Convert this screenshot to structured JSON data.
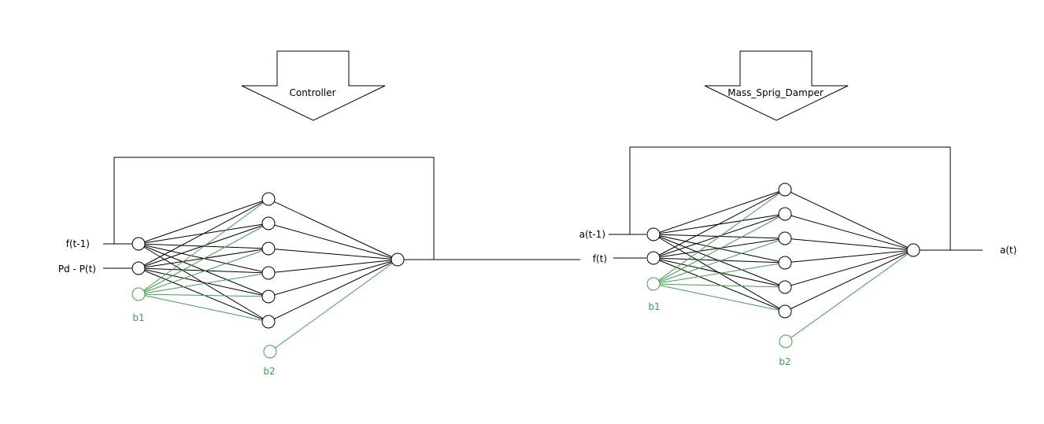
{
  "colors": {
    "line": "#000000",
    "bias": "#3f9f4f",
    "background": "#ffffff"
  },
  "controller": {
    "title": "Controller",
    "inputs": [
      "f(t-1)",
      "Pd - P(t)"
    ],
    "bias1_label": "b1",
    "bias2_label": "b2",
    "hidden_count": 6
  },
  "plant": {
    "title": "Mass_Sprig_Damper",
    "inputs": [
      "a(t-1)",
      "f(t)"
    ],
    "output": "a(t)",
    "bias1_label": "b1",
    "bias2_label": "b2",
    "hidden_count": 6
  }
}
